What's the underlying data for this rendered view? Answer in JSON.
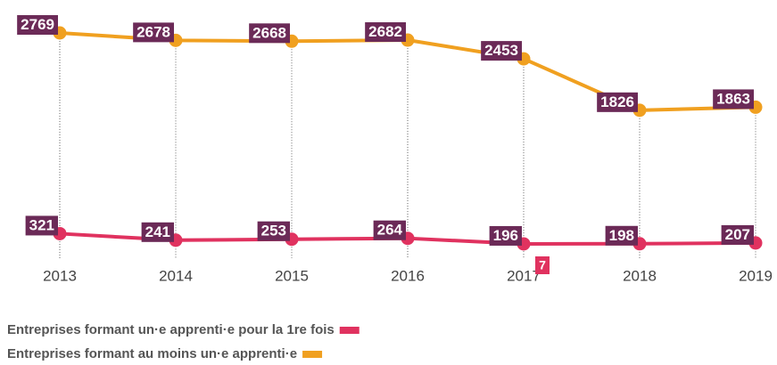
{
  "chart_data": {
    "type": "line",
    "categories": [
      "2013",
      "2014",
      "2015",
      "2016",
      "2017",
      "2018",
      "2019"
    ],
    "series": [
      {
        "name": "Entreprises formant un·e apprenti·e pour la 1re fois",
        "color": "#e0325f",
        "values": [
          321,
          241,
          253,
          264,
          196,
          198,
          207
        ]
      },
      {
        "name": "Entreprises formant au moins un·e apprenti·e",
        "color": "#f0a020",
        "values": [
          2769,
          2678,
          2668,
          2682,
          2453,
          1826,
          1863
        ]
      }
    ],
    "label_color": "#6b2a57",
    "annotation": "7"
  }
}
